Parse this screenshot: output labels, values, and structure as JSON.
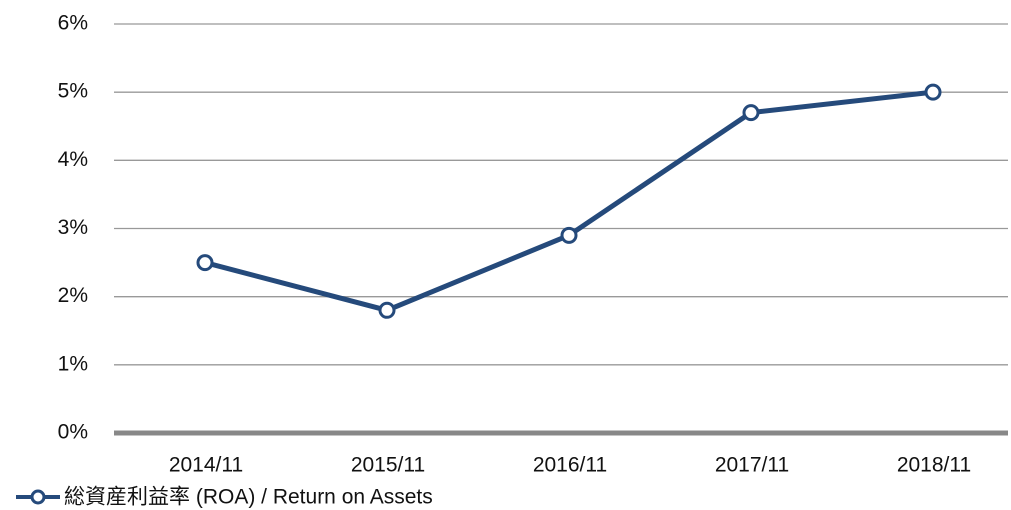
{
  "chart_data": {
    "type": "line",
    "categories": [
      "2014/11",
      "2015/11",
      "2016/11",
      "2017/11",
      "2018/11"
    ],
    "series": [
      {
        "name": "総資産利益率 (ROA) / Return on Assets",
        "color": "#254a7b",
        "values": [
          2.5,
          1.8,
          2.9,
          4.7,
          5.0
        ]
      }
    ],
    "ylim": [
      0,
      6
    ],
    "yticks": [
      {
        "value": 0,
        "label": "0%"
      },
      {
        "value": 1,
        "label": "1%"
      },
      {
        "value": 2,
        "label": "2%"
      },
      {
        "value": 3,
        "label": "3%"
      },
      {
        "value": 4,
        "label": "4%"
      },
      {
        "value": 5,
        "label": "5%"
      },
      {
        "value": 6,
        "label": "6%"
      }
    ],
    "grid": true,
    "legend": "bottom-left"
  }
}
